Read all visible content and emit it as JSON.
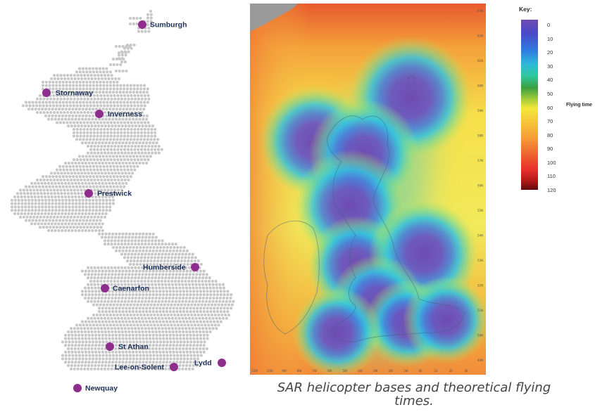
{
  "bases": [
    {
      "name": "Sumburgh"
    },
    {
      "name": "Stornaway"
    },
    {
      "name": "Inverness"
    },
    {
      "name": "Prestwick"
    },
    {
      "name": "Humberside"
    },
    {
      "name": "Caenarfon"
    },
    {
      "name": "St Athan"
    },
    {
      "name": "Lee-on-Solent"
    },
    {
      "name": "Lydd"
    },
    {
      "name": "Newquay"
    }
  ],
  "colors": {
    "dot": "#c8c8c8",
    "marker": "#8e2d8e",
    "label": "#1c2f57"
  },
  "heatmap": {
    "lat_labels": [
      "63N",
      "62N",
      "61N",
      "60N",
      "59N",
      "58N",
      "57N",
      "56N",
      "55N",
      "54N",
      "53N",
      "52N",
      "51N",
      "50N",
      "49N"
    ],
    "lon_labels": [
      "11W",
      "10W",
      "9W",
      "8W",
      "7W",
      "6W",
      "5W",
      "4W",
      "3W",
      "2W",
      "1W",
      "0E",
      "1E",
      "2E",
      "3E"
    ]
  },
  "key": {
    "title": "Key:",
    "ticks": [
      "0",
      "10",
      "20",
      "30",
      "40",
      "50",
      "60",
      "70",
      "80",
      "90",
      "100",
      "110",
      "120"
    ],
    "side_label": "Flying time"
  },
  "caption": "SAR helicopter bases and theoretical flying times."
}
